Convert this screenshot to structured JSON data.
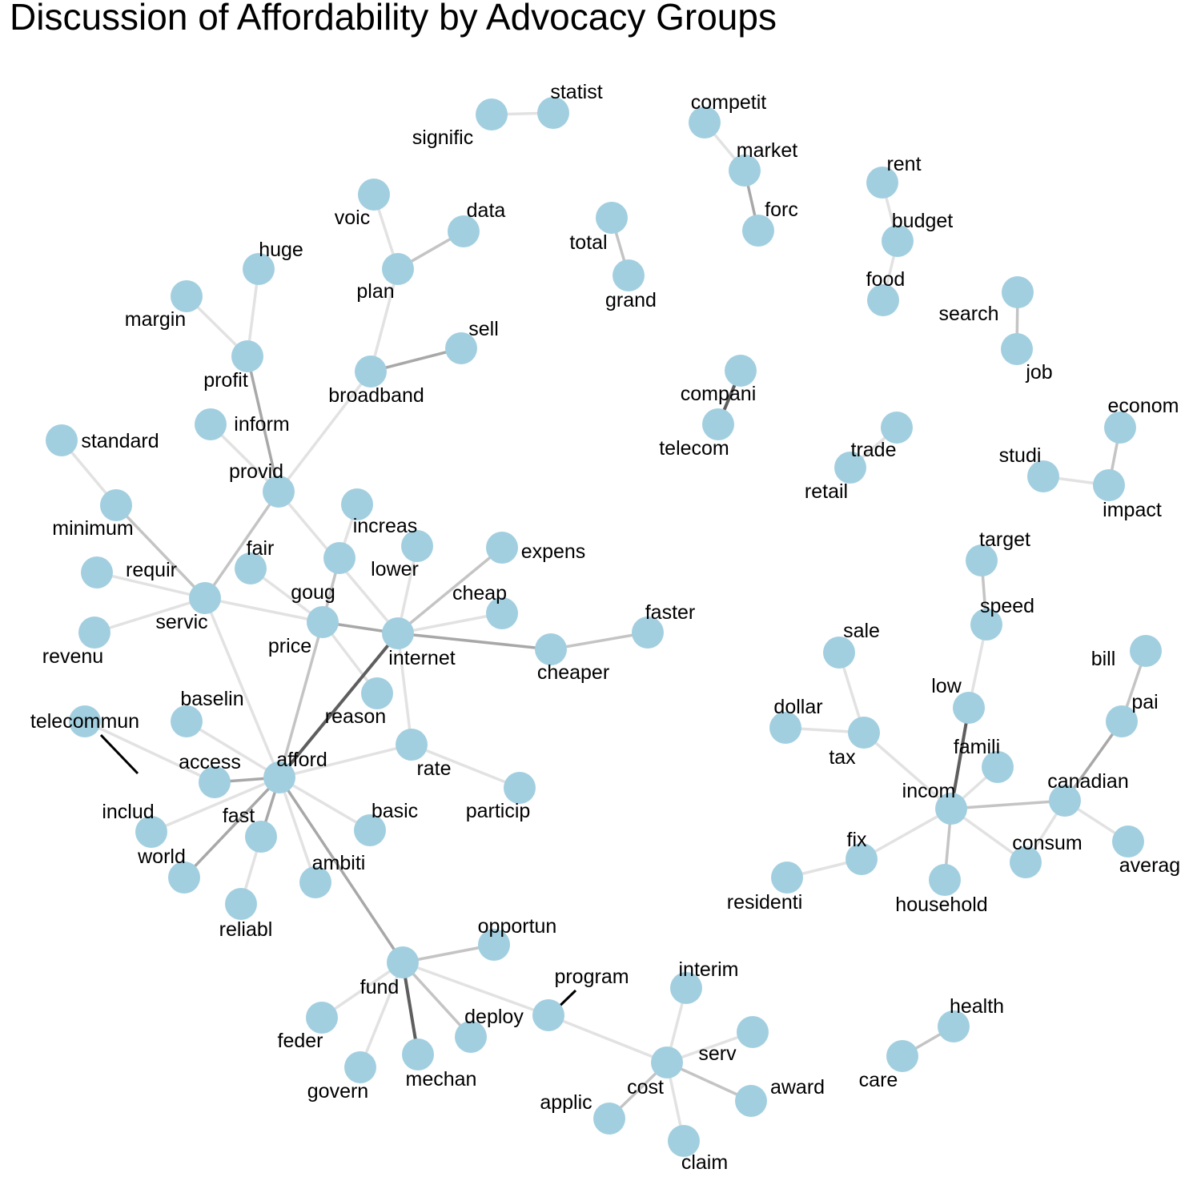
{
  "title": "Discussion of Affordability by Advocacy Groups",
  "colors": {
    "node": "#a2cfe0",
    "edge_light": "#e2e2e2",
    "edge_mid": "#c4c4c4",
    "edge_strong": "#a8a8a8",
    "edge_heavy": "#5e5e5e",
    "leader": "#000000",
    "text": "#000000"
  },
  "nodes": [
    {
      "id": "signific",
      "label": "signific"
    },
    {
      "id": "statist",
      "label": "statist"
    },
    {
      "id": "competit",
      "label": "competit"
    },
    {
      "id": "market",
      "label": "market"
    },
    {
      "id": "forc",
      "label": "forc"
    },
    {
      "id": "rent",
      "label": "rent"
    },
    {
      "id": "budget",
      "label": "budget"
    },
    {
      "id": "food",
      "label": "food"
    },
    {
      "id": "voic",
      "label": "voic"
    },
    {
      "id": "data",
      "label": "data"
    },
    {
      "id": "plan",
      "label": "plan"
    },
    {
      "id": "total",
      "label": "total"
    },
    {
      "id": "grand",
      "label": "grand"
    },
    {
      "id": "huge",
      "label": "huge"
    },
    {
      "id": "margin",
      "label": "margin"
    },
    {
      "id": "profit",
      "label": "profit"
    },
    {
      "id": "search",
      "label": "search"
    },
    {
      "id": "job",
      "label": "job"
    },
    {
      "id": "sell",
      "label": "sell"
    },
    {
      "id": "broadband",
      "label": "broadband"
    },
    {
      "id": "compani",
      "label": "compani"
    },
    {
      "id": "telecom",
      "label": "telecom"
    },
    {
      "id": "inform",
      "label": "inform"
    },
    {
      "id": "standard",
      "label": "standard"
    },
    {
      "id": "trade",
      "label": "trade"
    },
    {
      "id": "retail",
      "label": "retail"
    },
    {
      "id": "econom",
      "label": "econom"
    },
    {
      "id": "studi",
      "label": "studi"
    },
    {
      "id": "impact",
      "label": "impact"
    },
    {
      "id": "provid",
      "label": "provid"
    },
    {
      "id": "minimum",
      "label": "minimum"
    },
    {
      "id": "increas",
      "label": "increas"
    },
    {
      "id": "target",
      "label": "target"
    },
    {
      "id": "fair",
      "label": "fair"
    },
    {
      "id": "lower",
      "label": "lower"
    },
    {
      "id": "expens",
      "label": "expens"
    },
    {
      "id": "requir",
      "label": "requir"
    },
    {
      "id": "goug",
      "label": "goug"
    },
    {
      "id": "servic",
      "label": "servic"
    },
    {
      "id": "cheap",
      "label": "cheap"
    },
    {
      "id": "speed",
      "label": "speed"
    },
    {
      "id": "faster",
      "label": "faster"
    },
    {
      "id": "price",
      "label": "price"
    },
    {
      "id": "internet",
      "label": "internet"
    },
    {
      "id": "revenu",
      "label": "revenu"
    },
    {
      "id": "cheaper",
      "label": "cheaper"
    },
    {
      "id": "sale",
      "label": "sale"
    },
    {
      "id": "bill",
      "label": "bill"
    },
    {
      "id": "low",
      "label": "low"
    },
    {
      "id": "reason",
      "label": "reason"
    },
    {
      "id": "baselin",
      "label": "baselin"
    },
    {
      "id": "dollar",
      "label": "dollar"
    },
    {
      "id": "pai",
      "label": "pai"
    },
    {
      "id": "telecommun",
      "label": "telecommun"
    },
    {
      "id": "tax",
      "label": "tax"
    },
    {
      "id": "rate",
      "label": "rate"
    },
    {
      "id": "famili",
      "label": "famili"
    },
    {
      "id": "access",
      "label": "access"
    },
    {
      "id": "afford",
      "label": "afford"
    },
    {
      "id": "canadian",
      "label": "canadian"
    },
    {
      "id": "includ",
      "label": "includ"
    },
    {
      "id": "incom",
      "label": "incom"
    },
    {
      "id": "particip",
      "label": "particip"
    },
    {
      "id": "fast",
      "label": "fast"
    },
    {
      "id": "basic",
      "label": "basic"
    },
    {
      "id": "world",
      "label": "world"
    },
    {
      "id": "ambiti",
      "label": "ambiti"
    },
    {
      "id": "fix",
      "label": "fix"
    },
    {
      "id": "consum",
      "label": "consum"
    },
    {
      "id": "averag",
      "label": "averag"
    },
    {
      "id": "residenti",
      "label": "residenti"
    },
    {
      "id": "household",
      "label": "household"
    },
    {
      "id": "reliabl",
      "label": "reliabl"
    },
    {
      "id": "opportun",
      "label": "opportun"
    },
    {
      "id": "fund",
      "label": "fund"
    },
    {
      "id": "interim",
      "label": "interim"
    },
    {
      "id": "program",
      "label": "program"
    },
    {
      "id": "health",
      "label": "health"
    },
    {
      "id": "deploy",
      "label": "deploy"
    },
    {
      "id": "feder",
      "label": "feder"
    },
    {
      "id": "serv",
      "label": "serv"
    },
    {
      "id": "mechan",
      "label": "mechan"
    },
    {
      "id": "care",
      "label": "care"
    },
    {
      "id": "cost",
      "label": "cost"
    },
    {
      "id": "award",
      "label": "award"
    },
    {
      "id": "govern",
      "label": "govern"
    },
    {
      "id": "applic",
      "label": "applic"
    },
    {
      "id": "claim",
      "label": "claim"
    }
  ],
  "edges": [
    {
      "source": "signific",
      "target": "statist",
      "weight": 1
    },
    {
      "source": "competit",
      "target": "market",
      "weight": 1
    },
    {
      "source": "market",
      "target": "forc",
      "weight": 3
    },
    {
      "source": "rent",
      "target": "budget",
      "weight": 1
    },
    {
      "source": "budget",
      "target": "food",
      "weight": 1
    },
    {
      "source": "voic",
      "target": "plan",
      "weight": 1
    },
    {
      "source": "plan",
      "target": "data",
      "weight": 2
    },
    {
      "source": "plan",
      "target": "broadband",
      "weight": 1
    },
    {
      "source": "total",
      "target": "grand",
      "weight": 2
    },
    {
      "source": "huge",
      "target": "profit",
      "weight": 1
    },
    {
      "source": "margin",
      "target": "profit",
      "weight": 1
    },
    {
      "source": "profit",
      "target": "provid",
      "weight": 3
    },
    {
      "source": "search",
      "target": "job",
      "weight": 2
    },
    {
      "source": "broadband",
      "target": "sell",
      "weight": 3
    },
    {
      "source": "broadband",
      "target": "provid",
      "weight": 1
    },
    {
      "source": "compani",
      "target": "telecom",
      "weight": 4
    },
    {
      "source": "inform",
      "target": "provid",
      "weight": 1
    },
    {
      "source": "standard",
      "target": "minimum",
      "weight": 1
    },
    {
      "source": "trade",
      "target": "retail",
      "weight": 1
    },
    {
      "source": "econom",
      "target": "impact",
      "weight": 2
    },
    {
      "source": "studi",
      "target": "impact",
      "weight": 1
    },
    {
      "source": "provid",
      "target": "servic",
      "weight": 2
    },
    {
      "source": "provid",
      "target": "internet",
      "weight": 1
    },
    {
      "source": "minimum",
      "target": "servic",
      "weight": 2
    },
    {
      "source": "increas",
      "target": "goug",
      "weight": 1
    },
    {
      "source": "goug",
      "target": "price",
      "weight": 2
    },
    {
      "source": "fair",
      "target": "price",
      "weight": 1
    },
    {
      "source": "lower",
      "target": "internet",
      "weight": 1
    },
    {
      "source": "requir",
      "target": "servic",
      "weight": 1
    },
    {
      "source": "revenu",
      "target": "servic",
      "weight": 1
    },
    {
      "source": "servic",
      "target": "price",
      "weight": 1
    },
    {
      "source": "servic",
      "target": "afford",
      "weight": 1
    },
    {
      "source": "price",
      "target": "internet",
      "weight": 3
    },
    {
      "source": "price",
      "target": "reason",
      "weight": 1
    },
    {
      "source": "price",
      "target": "afford",
      "weight": 2
    },
    {
      "source": "internet",
      "target": "expens",
      "weight": 2
    },
    {
      "source": "internet",
      "target": "cheap",
      "weight": 1
    },
    {
      "source": "internet",
      "target": "cheaper",
      "weight": 3
    },
    {
      "source": "internet",
      "target": "rate",
      "weight": 1
    },
    {
      "source": "internet",
      "target": "afford",
      "weight": 4
    },
    {
      "source": "cheaper",
      "target": "faster",
      "weight": 2
    },
    {
      "source": "baselin",
      "target": "afford",
      "weight": 1
    },
    {
      "source": "telecommun",
      "target": "access",
      "weight": 1
    },
    {
      "source": "access",
      "target": "afford",
      "weight": 3
    },
    {
      "source": "includ",
      "target": "afford",
      "weight": 1
    },
    {
      "source": "rate",
      "target": "afford",
      "weight": 1
    },
    {
      "source": "rate",
      "target": "particip",
      "weight": 1
    },
    {
      "source": "afford",
      "target": "fast",
      "weight": 3
    },
    {
      "source": "afford",
      "target": "world",
      "weight": 3
    },
    {
      "source": "afford",
      "target": "basic",
      "weight": 1
    },
    {
      "source": "afford",
      "target": "ambiti",
      "weight": 1
    },
    {
      "source": "afford",
      "target": "fund",
      "weight": 3
    },
    {
      "source": "fast",
      "target": "reliabl",
      "weight": 1
    },
    {
      "source": "target",
      "target": "speed",
      "weight": 2
    },
    {
      "source": "speed",
      "target": "low",
      "weight": 1
    },
    {
      "source": "low",
      "target": "incom",
      "weight": 4
    },
    {
      "source": "sale",
      "target": "tax",
      "weight": 1
    },
    {
      "source": "dollar",
      "target": "tax",
      "weight": 1
    },
    {
      "source": "tax",
      "target": "incom",
      "weight": 1
    },
    {
      "source": "bill",
      "target": "pai",
      "weight": 2
    },
    {
      "source": "pai",
      "target": "canadian",
      "weight": 3
    },
    {
      "source": "famili",
      "target": "incom",
      "weight": 1
    },
    {
      "source": "incom",
      "target": "canadian",
      "weight": 2
    },
    {
      "source": "incom",
      "target": "fix",
      "weight": 1
    },
    {
      "source": "incom",
      "target": "consum",
      "weight": 1
    },
    {
      "source": "incom",
      "target": "household",
      "weight": 2
    },
    {
      "source": "canadian",
      "target": "consum",
      "weight": 1
    },
    {
      "source": "canadian",
      "target": "averag",
      "weight": 1
    },
    {
      "source": "fix",
      "target": "residenti",
      "weight": 1
    },
    {
      "source": "fund",
      "target": "opportun",
      "weight": 2
    },
    {
      "source": "fund",
      "target": "program",
      "weight": 1
    },
    {
      "source": "fund",
      "target": "deploy",
      "weight": 2
    },
    {
      "source": "fund",
      "target": "feder",
      "weight": 1
    },
    {
      "source": "fund",
      "target": "mechan",
      "weight": 4
    },
    {
      "source": "fund",
      "target": "govern",
      "weight": 1
    },
    {
      "source": "program",
      "target": "cost",
      "weight": 1
    },
    {
      "source": "interim",
      "target": "cost",
      "weight": 1
    },
    {
      "source": "serv",
      "target": "cost",
      "weight": 1
    },
    {
      "source": "cost",
      "target": "award",
      "weight": 2
    },
    {
      "source": "cost",
      "target": "applic",
      "weight": 2
    },
    {
      "source": "cost",
      "target": "claim",
      "weight": 1
    },
    {
      "source": "health",
      "target": "care",
      "weight": 2
    }
  ]
}
